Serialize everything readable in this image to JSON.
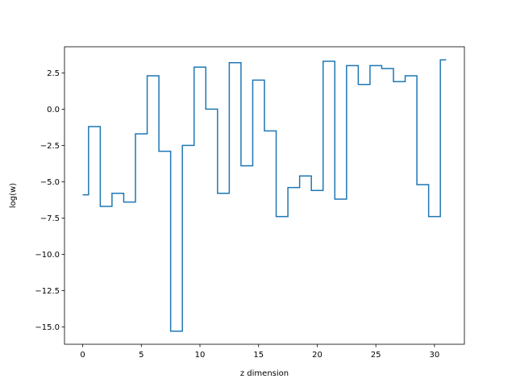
{
  "chart_data": {
    "type": "line",
    "drawstyle": "steps-mid",
    "title": "",
    "xlabel": "z dimension",
    "ylabel": "log(w)",
    "xlim": [
      -1.55,
      32.55
    ],
    "ylim": [
      -16.2,
      4.3
    ],
    "xticks": [
      0,
      5,
      10,
      15,
      20,
      25,
      30
    ],
    "xtick_labels": [
      "0",
      "5",
      "10",
      "15",
      "20",
      "25",
      "30"
    ],
    "yticks": [
      2.5,
      0.0,
      -2.5,
      -5.0,
      -7.5,
      -10.0,
      -12.5,
      -15.0
    ],
    "ytick_labels": [
      "2.5",
      "0.0",
      "−2.5",
      "−5.0",
      "−7.5",
      "−10.0",
      "−12.5",
      "−15.0"
    ],
    "grid": false,
    "series": [
      {
        "color": "#1f77b4",
        "x": [
          0,
          1,
          2,
          3,
          4,
          5,
          6,
          7,
          8,
          9,
          10,
          11,
          12,
          13,
          14,
          15,
          16,
          17,
          18,
          19,
          20,
          21,
          22,
          23,
          24,
          25,
          26,
          27,
          28,
          29,
          30,
          31
        ],
        "y": [
          -5.9,
          -1.2,
          -6.7,
          -5.8,
          -6.4,
          -1.7,
          2.3,
          -2.9,
          -15.3,
          -2.5,
          2.9,
          0.0,
          -5.8,
          3.2,
          -3.9,
          2.0,
          -1.5,
          -7.4,
          -5.4,
          -4.6,
          -5.6,
          3.3,
          -6.2,
          3.0,
          1.7,
          3.0,
          2.8,
          1.9,
          2.3,
          -5.2,
          -7.4,
          3.4
        ]
      }
    ]
  }
}
